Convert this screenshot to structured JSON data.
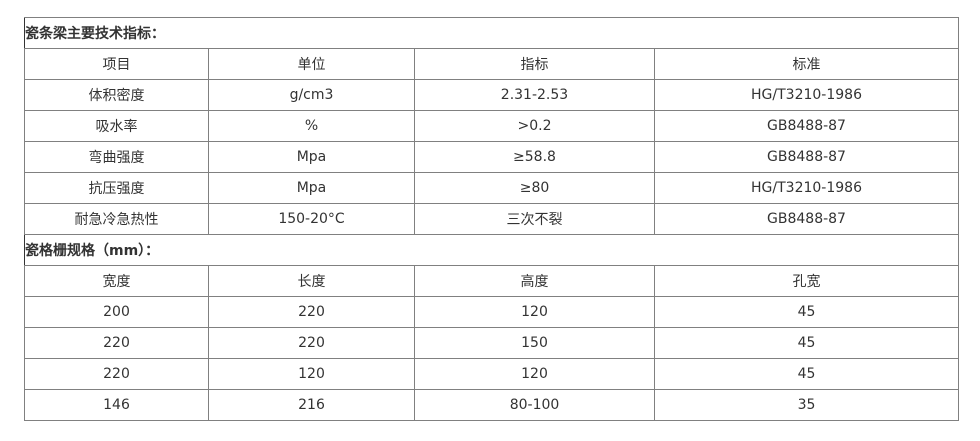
{
  "spec_title": "瓷条梁主要技术指标：",
  "spec_headers": [
    "项目",
    "单位",
    "指标",
    "标准"
  ],
  "spec_rows": [
    [
      "体积密度",
      "g/cm3",
      "2.31-2.53",
      "HG/T3210-1986"
    ],
    [
      "吸水率",
      "%",
      ">0.2",
      "GB8488-87"
    ],
    [
      "弯曲强度",
      "Mpa",
      "≥58.8",
      "GB8488-87"
    ],
    [
      "抗压强度",
      "Mpa",
      "≥80",
      "HG/T3210-1986"
    ],
    [
      "耐急冷急热性",
      "150-20°C",
      "三次不裂",
      "GB8488-87"
    ]
  ],
  "grid_title": "瓷格栅规格（mm）：",
  "grid_headers": [
    "宽度",
    "长度",
    "高度",
    "孔宽"
  ],
  "grid_rows": [
    [
      "200",
      "220",
      "120",
      "45"
    ],
    [
      "220",
      "220",
      "150",
      "45"
    ],
    [
      "220",
      "120",
      "120",
      "45"
    ],
    [
      "146",
      "216",
      "80-100",
      "35"
    ]
  ]
}
